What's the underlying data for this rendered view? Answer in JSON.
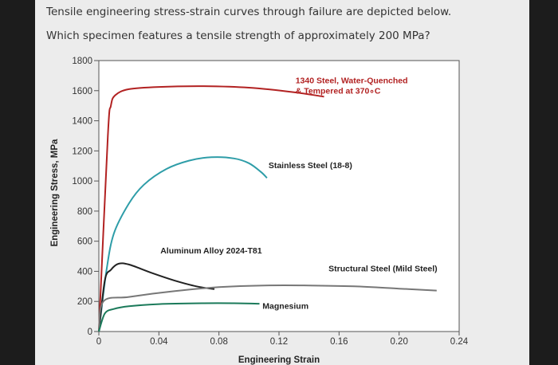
{
  "question": {
    "line1": "Tensile engineering stress-strain curves through failure are depicted below.",
    "line2": "Which specimen features a tensile strength of approximately 200 MPa?"
  },
  "chart_data": {
    "type": "line",
    "title": "",
    "xlabel": "Engineering Strain",
    "ylabel": "Engineering Stress, MPa",
    "xlim": [
      0,
      0.24
    ],
    "ylim": [
      0,
      1800
    ],
    "grid": false,
    "x_ticks": [
      "0",
      "0.04",
      "0.08",
      "0.12",
      "0.16",
      "0.20",
      "0.24"
    ],
    "y_ticks": [
      "0",
      "200",
      "400",
      "600",
      "800",
      "1000",
      "1200",
      "1400",
      "1600",
      "1800"
    ],
    "series": [
      {
        "name": "1340 Steel, Water-Quenched & Tempered at 370°C",
        "label_lines": [
          "1340 Steel, Water-Quenched",
          "& Tempered at 370∘C"
        ],
        "color": "#b22222",
        "label_at": [
          0.131,
          1650
        ],
        "points": [
          [
            0,
            0
          ],
          [
            0.006,
            1300
          ],
          [
            0.008,
            1500
          ],
          [
            0.011,
            1570
          ],
          [
            0.02,
            1610
          ],
          [
            0.04,
            1625
          ],
          [
            0.07,
            1630
          ],
          [
            0.1,
            1620
          ],
          [
            0.13,
            1590
          ],
          [
            0.15,
            1560
          ]
        ]
      },
      {
        "name": "Stainless Steel (18-8)",
        "color": "#2e9da8",
        "label_at": [
          0.113,
          1085
        ],
        "points": [
          [
            0,
            0
          ],
          [
            0.005,
            400
          ],
          [
            0.01,
            650
          ],
          [
            0.02,
            850
          ],
          [
            0.03,
            975
          ],
          [
            0.045,
            1080
          ],
          [
            0.06,
            1135
          ],
          [
            0.075,
            1158
          ],
          [
            0.09,
            1150
          ],
          [
            0.1,
            1118
          ],
          [
            0.108,
            1060
          ],
          [
            0.112,
            1020
          ]
        ]
      },
      {
        "name": "Aluminum Alloy 2024-T81",
        "color": "#222222",
        "label_at": [
          0.041,
          520
        ],
        "points": [
          [
            0,
            0
          ],
          [
            0.004,
            340
          ],
          [
            0.008,
            410
          ],
          [
            0.013,
            450
          ],
          [
            0.02,
            445
          ],
          [
            0.035,
            390
          ],
          [
            0.05,
            340
          ],
          [
            0.065,
            300
          ],
          [
            0.077,
            282
          ]
        ]
      },
      {
        "name": "Structural Steel (Mild Steel)",
        "color": "#777777",
        "label_at": [
          0.153,
          400
        ],
        "points": [
          [
            0,
            0
          ],
          [
            0.003,
            200
          ],
          [
            0.02,
            230
          ],
          [
            0.05,
            268
          ],
          [
            0.08,
            295
          ],
          [
            0.11,
            306
          ],
          [
            0.14,
            306
          ],
          [
            0.17,
            300
          ],
          [
            0.2,
            285
          ],
          [
            0.225,
            272
          ]
        ]
      },
      {
        "name": "Magnesium",
        "color": "#1b7a5a",
        "label_at": [
          0.109,
          150
        ],
        "points": [
          [
            0,
            0
          ],
          [
            0.004,
            120
          ],
          [
            0.01,
            150
          ],
          [
            0.02,
            168
          ],
          [
            0.04,
            182
          ],
          [
            0.07,
            188
          ],
          [
            0.09,
            188
          ],
          [
            0.107,
            185
          ]
        ]
      }
    ]
  }
}
